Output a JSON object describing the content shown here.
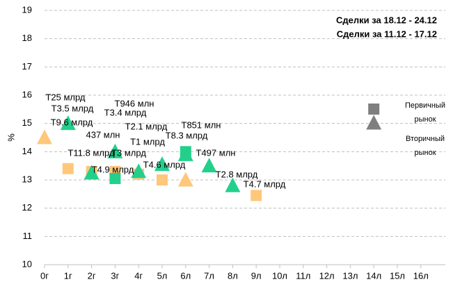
{
  "chart_data": {
    "type": "scatter",
    "y_label": "%",
    "categories": [
      "0г",
      "1г",
      "2г",
      "3г",
      "4г",
      "5л",
      "6л",
      "7л",
      "8л",
      "9л",
      "10л",
      "11л",
      "12л",
      "13л",
      "14л",
      "15л",
      "16л"
    ],
    "ylim": [
      10,
      19
    ],
    "yticks": [
      10,
      11,
      12,
      13,
      14,
      15,
      16,
      17,
      18,
      19
    ],
    "grid": true,
    "series": [
      {
        "name": "Сделки за 18.12 - 24.12",
        "color": "#22d08c",
        "x": [
          "1г",
          "2г",
          "3г",
          "3г",
          "4г",
          "5л",
          "6л",
          "6л",
          "7л",
          "8л"
        ],
        "values": [
          15.0,
          13.25,
          14.0,
          13.05,
          13.3,
          13.55,
          13.9,
          14.0,
          13.5,
          12.8
        ],
        "markers": [
          "triangle",
          "triangle",
          "triangle",
          "square",
          "triangle",
          "triangle",
          "triangle",
          "square",
          "triangle",
          "triangle"
        ],
        "labels": [
          "T9.6 млрд",
          "T11.8 млрд",
          "T946 млн",
          "437 млн",
          "T2.1 млрд",
          "T4.6 млрд",
          "T8.3 млрд",
          "T851 млн",
          "T497 млн",
          "T2.8 млрд"
        ]
      },
      {
        "name": "Сделки за 11.12 - 17.12",
        "color": "#ffc77a",
        "x": [
          "0г",
          "1г",
          "2г",
          "3г",
          "4г",
          "5л",
          "6л",
          "9л"
        ],
        "values": [
          14.5,
          13.4,
          13.3,
          13.3,
          13.2,
          13.0,
          13.0,
          12.45
        ],
        "markers": [
          "triangle",
          "square",
          "square",
          "square",
          "square",
          "square",
          "triangle",
          "square"
        ],
        "labels": [
          "T25 млрд",
          "T3.5 млрд",
          "T4.9 млрд",
          "T3.4 млрд",
          "T3 млрд",
          "T1 млрд",
          null,
          "T4.7 млрд"
        ]
      }
    ],
    "marker_legend": {
      "color": "#7f7f7f",
      "items": [
        {
          "shape": "square",
          "lines": [
            "Первичный",
            "рынок"
          ]
        },
        {
          "shape": "triangle",
          "lines": [
            "Вторичный",
            "рынок"
          ]
        }
      ]
    }
  }
}
